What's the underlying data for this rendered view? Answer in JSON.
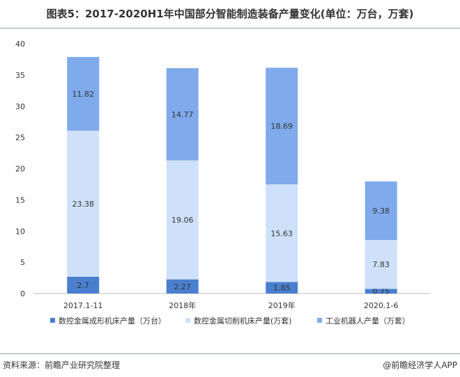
{
  "title": "图表5：2017-2020H1年中国部分智能制造装备产量变化(单位：万台，万套)",
  "footer": {
    "source": "资料来源：前瞻产业研究院整理",
    "brand": "@前瞻经济学人APP"
  },
  "colors": {
    "series": [
      "#4a7fd0",
      "#cfe1fa",
      "#7faaeb"
    ],
    "axis": "#bfbfbf"
  },
  "chart_data": {
    "type": "bar",
    "stacked": true,
    "title": "",
    "xlabel": "",
    "ylabel": "",
    "categories": [
      "2017.1-11",
      "2018年",
      "2019年",
      "2020.1-6"
    ],
    "ylim": [
      0,
      40
    ],
    "yticks": [
      0,
      5,
      10,
      15,
      20,
      25,
      30,
      35,
      40
    ],
    "grid": false,
    "legend_position": "bottom",
    "series": [
      {
        "name": "数控金属成形机床产量（万台）",
        "values": [
          2.7,
          2.27,
          1.85,
          0.75
        ]
      },
      {
        "name": "数控金属切削机床产量(万套)",
        "values": [
          23.38,
          19.06,
          15.63,
          7.83
        ]
      },
      {
        "name": "工业机器人产量（万套）",
        "values": [
          11.82,
          14.77,
          18.69,
          9.38
        ]
      }
    ]
  }
}
